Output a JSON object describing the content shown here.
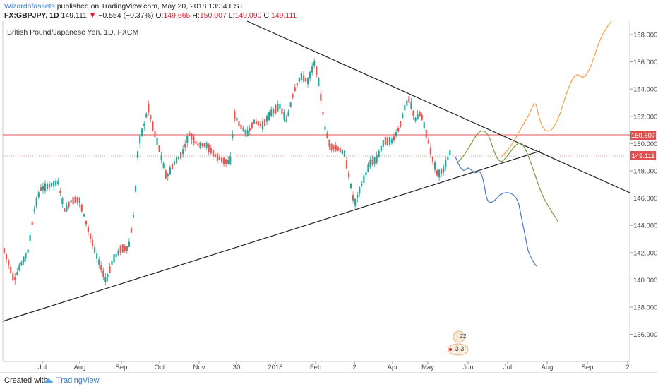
{
  "header": {
    "author": "Wizardofassets",
    "published_text": "published on TradingView.com, May 20, 2018 13:34 EST",
    "symbol": "FX:GBPJPY, 1D",
    "last_price": "149.111",
    "change_arrow": "▼",
    "change": "−0.554 (−0.37%)",
    "o_label": "O:",
    "o_value": "149.665",
    "h_label": "H:",
    "h_value": "150.007",
    "l_label": "L:",
    "l_value": "149.090",
    "c_label": "C:",
    "c_value": "149.111"
  },
  "chart_title": "British Pound/Japanese Yen, 1D, FXCM",
  "price_tags": {
    "resistance": "150.607",
    "current": "149.111"
  },
  "price_tag_colors": {
    "resistance": "#e05050",
    "current": "#e05050"
  },
  "y_axis_labels": [
    "158.000",
    "156.000",
    "154.000",
    "152.000",
    "150.000",
    "148.000",
    "146.000",
    "144.000",
    "142.000",
    "140.000",
    "138.000",
    "136.000"
  ],
  "x_axis_labels": [
    "Jul",
    "Aug",
    "Sep",
    "Oct",
    "Nov",
    "30",
    "2018",
    "Feb",
    "2",
    "Apr",
    "May",
    "Jun",
    "Jul",
    "Aug",
    "Sep",
    "2"
  ],
  "marker": {
    "count_top": "22",
    "count_bottom": "3 3"
  },
  "footer": {
    "created_with": "Created with",
    "brand": "TradingView",
    "icon": "tradingview-cloud-icon"
  },
  "colors": {
    "bull": "#26a69a",
    "bear": "#ef5350",
    "trendline": "#222222",
    "projection_orange": "#f4a14a",
    "projection_green": "#7a9a3a",
    "projection_blue": "#4a78c6",
    "author_link": "#3b7fd6"
  }
}
